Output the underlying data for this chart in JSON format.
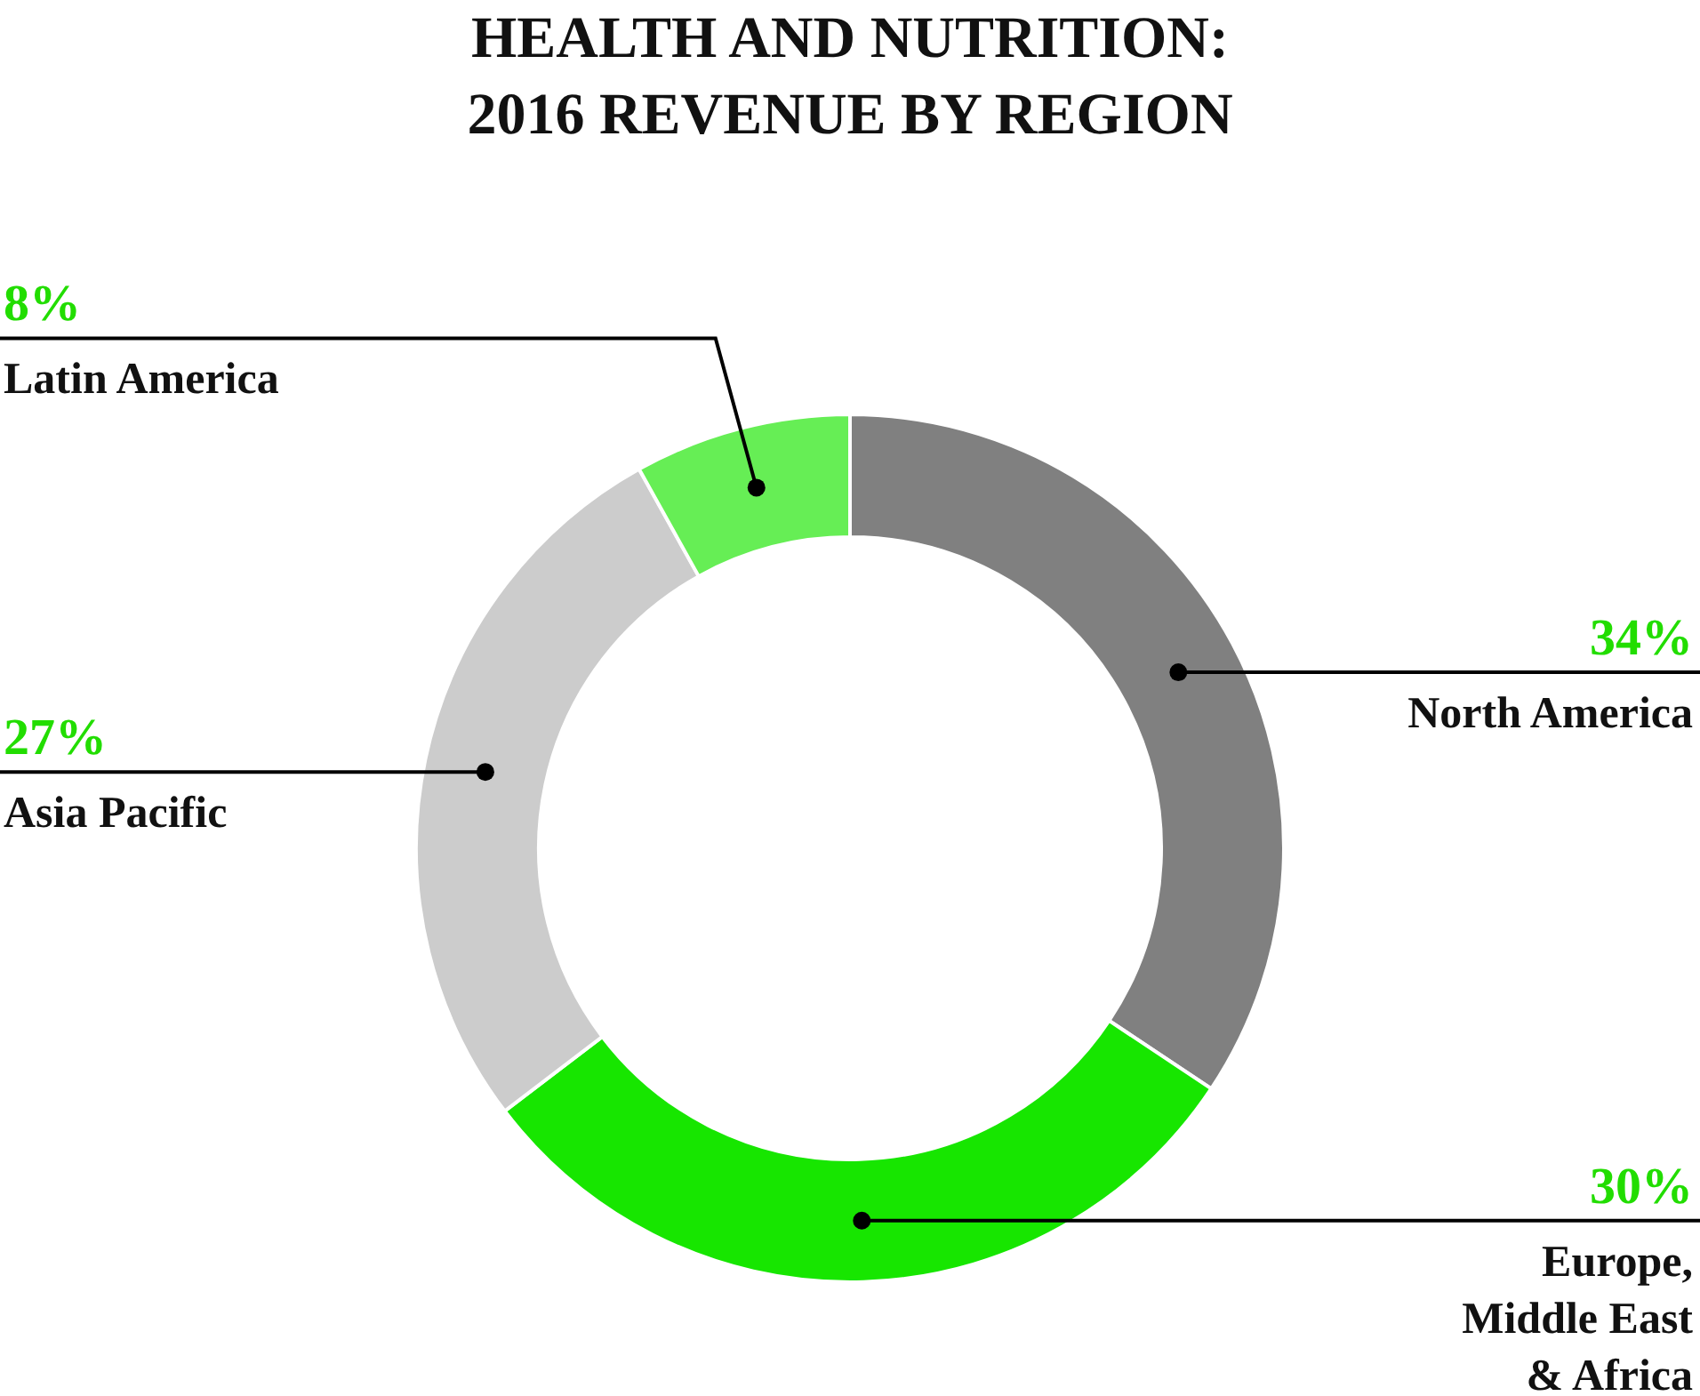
{
  "chart_data": {
    "type": "donut",
    "title": "HEALTH AND NUTRITION: 2016 REVENUE BY REGION",
    "categories": [
      "North America",
      "Europe, Middle East & Africa",
      "Asia Pacific",
      "Latin America"
    ],
    "values": [
      34,
      30,
      27,
      8
    ],
    "colors": [
      "#808080",
      "#17e600",
      "#cccccc",
      "#66ee55"
    ],
    "value_labels": [
      "34%",
      "30%",
      "27%",
      "8%"
    ]
  }
}
